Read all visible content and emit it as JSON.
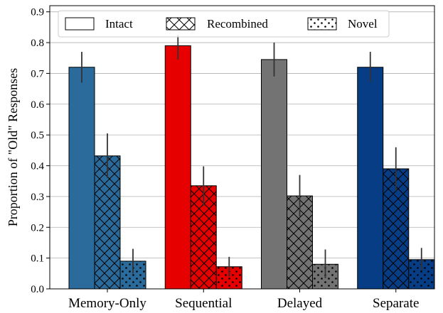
{
  "chart_data": {
    "type": "bar",
    "ylabel": "Proportion of \"Old\" Responses",
    "xlabel": "",
    "ylim": [
      0,
      0.92
    ],
    "yticks": [
      "0.0",
      "0.1",
      "0.2",
      "0.3",
      "0.4",
      "0.5",
      "0.6",
      "0.7",
      "0.8",
      "0.9"
    ],
    "grid": "horizontal",
    "legend_position": "top",
    "legend": [
      {
        "label": "Intact",
        "pattern": "none"
      },
      {
        "label": "Recombined",
        "pattern": "crosshatch"
      },
      {
        "label": "Novel",
        "pattern": "dots"
      }
    ],
    "categories": [
      "Memory-Only",
      "Sequential",
      "Delayed",
      "Separate"
    ],
    "category_colors": [
      "#2a6b9c",
      "#e60000",
      "#737373",
      "#073d84"
    ],
    "series": [
      {
        "name": "Intact",
        "pattern": "none",
        "values": [
          0.72,
          0.79,
          0.745,
          0.72
        ],
        "err_low": [
          0.67,
          0.745,
          0.69,
          0.672
        ],
        "err_high": [
          0.77,
          0.825,
          0.8,
          0.77
        ]
      },
      {
        "name": "Recombined",
        "pattern": "crosshatch",
        "values": [
          0.432,
          0.335,
          0.302,
          0.39
        ],
        "err_low": [
          0.36,
          0.27,
          0.235,
          0.318
        ],
        "err_high": [
          0.505,
          0.398,
          0.37,
          0.46
        ]
      },
      {
        "name": "Novel",
        "pattern": "dots",
        "values": [
          0.09,
          0.072,
          0.08,
          0.095
        ],
        "err_low": [
          0.05,
          0.04,
          0.035,
          0.06
        ],
        "err_high": [
          0.13,
          0.104,
          0.128,
          0.133
        ]
      }
    ]
  }
}
